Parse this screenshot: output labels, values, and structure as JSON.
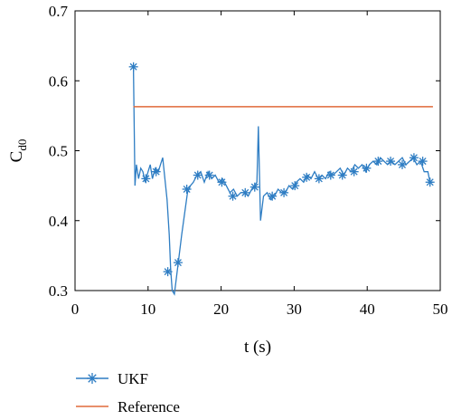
{
  "colors": {
    "ukf": "#2e7dc3",
    "reference": "#e06a3a"
  },
  "chart_data": {
    "type": "line",
    "title": "",
    "xlabel": "t (s)",
    "ylabel_main": "C",
    "ylabel_sub": "d0",
    "xlim": [
      0,
      50
    ],
    "ylim": [
      0.3,
      0.7
    ],
    "x_ticks": [
      "0",
      "10",
      "20",
      "30",
      "40",
      "50"
    ],
    "y_ticks": [
      "0.3",
      "0.4",
      "0.5",
      "0.6",
      "0.7"
    ],
    "grid": false,
    "legend_position": "bottom-left",
    "series": [
      {
        "name": "UKF",
        "marker": "asterisk",
        "x": [
          8.0,
          8.2,
          8.4,
          8.7,
          9.0,
          9.3,
          9.6,
          10.0,
          10.3,
          10.6,
          11.0,
          11.4,
          11.7,
          12.0,
          12.3,
          12.6,
          12.9,
          13.1,
          13.3,
          13.6,
          13.9,
          14.2,
          14.6,
          15.0,
          15.4,
          15.8,
          16.2,
          16.7,
          17.2,
          17.7,
          18.2,
          18.7,
          19.2,
          19.7,
          20.2,
          20.7,
          21.2,
          21.7,
          22.2,
          22.7,
          23.2,
          23.7,
          24.2,
          24.6,
          24.9,
          25.1,
          25.4,
          25.8,
          26.3,
          26.8,
          27.3,
          27.8,
          28.3,
          28.8,
          29.3,
          29.8,
          30.3,
          30.8,
          31.3,
          31.8,
          32.3,
          32.8,
          33.3,
          33.8,
          34.3,
          34.8,
          35.3,
          35.8,
          36.3,
          36.8,
          37.3,
          37.8,
          38.3,
          38.8,
          39.3,
          39.8,
          40.3,
          40.8,
          41.3,
          41.8,
          42.3,
          42.8,
          43.3,
          43.8,
          44.3,
          44.8,
          45.3,
          45.8,
          46.3,
          46.8,
          47.3,
          47.8,
          48.3,
          48.6,
          49.0
        ],
        "y": [
          0.62,
          0.45,
          0.48,
          0.46,
          0.475,
          0.47,
          0.455,
          0.47,
          0.48,
          0.46,
          0.475,
          0.47,
          0.48,
          0.49,
          0.46,
          0.43,
          0.38,
          0.33,
          0.3,
          0.295,
          0.32,
          0.345,
          0.38,
          0.41,
          0.44,
          0.45,
          0.455,
          0.465,
          0.47,
          0.455,
          0.47,
          0.46,
          0.465,
          0.455,
          0.46,
          0.45,
          0.44,
          0.445,
          0.435,
          0.44,
          0.44,
          0.435,
          0.445,
          0.45,
          0.455,
          0.535,
          0.4,
          0.435,
          0.44,
          0.43,
          0.435,
          0.445,
          0.44,
          0.44,
          0.45,
          0.445,
          0.455,
          0.46,
          0.455,
          0.465,
          0.46,
          0.47,
          0.46,
          0.465,
          0.46,
          0.47,
          0.465,
          0.47,
          0.475,
          0.465,
          0.475,
          0.47,
          0.48,
          0.475,
          0.48,
          0.47,
          0.48,
          0.485,
          0.48,
          0.49,
          0.485,
          0.48,
          0.485,
          0.48,
          0.485,
          0.49,
          0.48,
          0.485,
          0.49,
          0.48,
          0.485,
          0.47,
          0.47,
          0.455,
          0.455
        ],
        "marker_x": [
          8.0,
          9.7,
          11.1,
          12.7,
          14.1,
          15.3,
          16.8,
          18.4,
          20.1,
          21.6,
          23.3,
          24.6,
          27.0,
          28.6,
          30.1,
          31.7,
          33.4,
          35.0,
          36.6,
          38.2,
          39.9,
          41.5,
          43.2,
          44.8,
          46.4,
          47.6,
          48.6
        ],
        "marker_y": [
          0.62,
          0.46,
          0.47,
          0.327,
          0.34,
          0.445,
          0.465,
          0.465,
          0.455,
          0.435,
          0.44,
          0.448,
          0.435,
          0.44,
          0.45,
          0.462,
          0.46,
          0.465,
          0.465,
          0.47,
          0.475,
          0.485,
          0.485,
          0.48,
          0.49,
          0.485,
          0.455
        ]
      },
      {
        "name": "Reference",
        "marker": "none",
        "x": [
          8.0,
          49.0
        ],
        "y": [
          0.563,
          0.563
        ]
      }
    ]
  }
}
